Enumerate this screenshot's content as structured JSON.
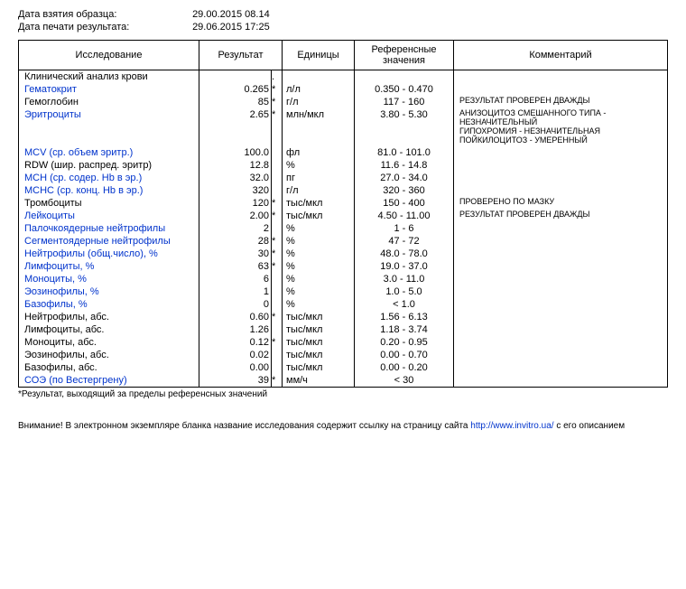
{
  "meta": {
    "sample_date_label": "Дата взятия образца:",
    "sample_date_value": "29.00.2015 08.14",
    "print_date_label": "Дата печати результата:",
    "print_date_value": "29.06.2015 17:25"
  },
  "headers": {
    "name": "Исследование",
    "result": "Результат",
    "unit": "Единицы",
    "ref": "Референсные значения",
    "comment": "Комментарий"
  },
  "rows": [
    {
      "name": "Клинический анализ крови",
      "link": false,
      "result": "",
      "star": ".",
      "unit": "",
      "ref": "",
      "comment": "",
      "section": true
    },
    {
      "name": "Гематокрит",
      "link": true,
      "result": "0.265",
      "star": "*",
      "unit": "л/л",
      "ref": "0.350 - 0.470",
      "comment": ""
    },
    {
      "name": "Гемоглобин",
      "link": false,
      "result": "85",
      "star": "*",
      "unit": "г/л",
      "ref": "117 - 160",
      "comment": "РЕЗУЛЬТАТ ПРОВЕРЕН ДВАЖДЫ"
    },
    {
      "name": "Эритроциты",
      "link": true,
      "result": "2.65",
      "star": "*",
      "unit": "млн/мкл",
      "ref": "3.80 - 5.30",
      "comment": "АНИЗОЦИТОЗ СМЕШАННОГО ТИПА - НЕЗНАЧИТЕЛЬНЫЙ\nГИПОХРОМИЯ - НЕЗНАЧИТЕЛЬНАЯ\nПОЙКИЛОЦИТОЗ - УМЕРЕННЫЙ"
    },
    {
      "name": "MCV (ср. объем эритр.)",
      "link": true,
      "result": "100.0",
      "star": "",
      "unit": "фл",
      "ref": "81.0 - 101.0",
      "comment": ""
    },
    {
      "name": "RDW (шир. распред. эритр)",
      "link": false,
      "result": "12.8",
      "star": "",
      "unit": "%",
      "ref": "11.6 - 14.8",
      "comment": ""
    },
    {
      "name": "MCH (ср. содер. Hb в эр.)",
      "link": true,
      "result": "32.0",
      "star": "",
      "unit": "пг",
      "ref": "27.0 - 34.0",
      "comment": ""
    },
    {
      "name": "MCHC (ср. конц. Hb в эр.)",
      "link": true,
      "result": "320",
      "star": "",
      "unit": "г/л",
      "ref": "320 - 360",
      "comment": ""
    },
    {
      "name": "Тромбоциты",
      "link": false,
      "result": "120",
      "star": "*",
      "unit": "тыс/мкл",
      "ref": "150 - 400",
      "comment": "ПРОВЕРЕНО ПО МАЗКУ"
    },
    {
      "name": "Лейкоциты",
      "link": true,
      "result": "2.00",
      "star": "*",
      "unit": "тыс/мкл",
      "ref": "4.50 - 11.00",
      "comment": "РЕЗУЛЬТАТ ПРОВЕРЕН ДВАЖДЫ"
    },
    {
      "name": "Палочкоядерные нейтрофилы",
      "link": true,
      "result": "2",
      "star": "",
      "unit": "%",
      "ref": "1 - 6",
      "comment": ""
    },
    {
      "name": "Сегментоядерные нейтрофилы",
      "link": true,
      "result": "28",
      "star": "*",
      "unit": "%",
      "ref": "47 - 72",
      "comment": ""
    },
    {
      "name": "Нейтрофилы (общ.число), %",
      "link": true,
      "result": "30",
      "star": "*",
      "unit": "%",
      "ref": "48.0 - 78.0",
      "comment": ""
    },
    {
      "name": "Лимфоциты, %",
      "link": true,
      "result": "63",
      "star": "*",
      "unit": "%",
      "ref": "19.0 - 37.0",
      "comment": ""
    },
    {
      "name": "Моноциты, %",
      "link": true,
      "result": "6",
      "star": "",
      "unit": "%",
      "ref": "3.0 - 11.0",
      "comment": ""
    },
    {
      "name": "Эозинофилы, %",
      "link": true,
      "result": "1",
      "star": "",
      "unit": "%",
      "ref": "1.0 - 5.0",
      "comment": ""
    },
    {
      "name": "Базофилы, %",
      "link": true,
      "result": "0",
      "star": "",
      "unit": "%",
      "ref": "< 1.0",
      "comment": ""
    },
    {
      "name": "Нейтрофилы, абс.",
      "link": false,
      "result": "0.60",
      "star": "*",
      "unit": "тыс/мкл",
      "ref": "1.56 - 6.13",
      "comment": ""
    },
    {
      "name": "Лимфоциты, абс.",
      "link": false,
      "result": "1.26",
      "star": "",
      "unit": "тыс/мкл",
      "ref": "1.18 - 3.74",
      "comment": ""
    },
    {
      "name": "Моноциты, абс.",
      "link": false,
      "result": "0.12",
      "star": "*",
      "unit": "тыс/мкл",
      "ref": "0.20 - 0.95",
      "comment": ""
    },
    {
      "name": "Эозинофилы, абс.",
      "link": false,
      "result": "0.02",
      "star": "",
      "unit": "тыс/мкл",
      "ref": "0.00 - 0.70",
      "comment": ""
    },
    {
      "name": "Базофилы, абс.",
      "link": false,
      "result": "0.00",
      "star": "",
      "unit": "тыс/мкл",
      "ref": "0.00 - 0.20",
      "comment": ""
    },
    {
      "name": "СОЭ (по Вестергрену)",
      "link": true,
      "result": "39",
      "star": "*",
      "unit": "мм/ч",
      "ref": "< 30",
      "comment": "",
      "last": true
    }
  ],
  "footnote": "*Результат, выходящий за пределы референсных значений",
  "notice": {
    "pre": "Внимание! В электронном экземпляре бланка название исследования содержит ссылку на страницу сайта ",
    "url": "http://www.invitro.ua/",
    "post": " с его описанием"
  }
}
